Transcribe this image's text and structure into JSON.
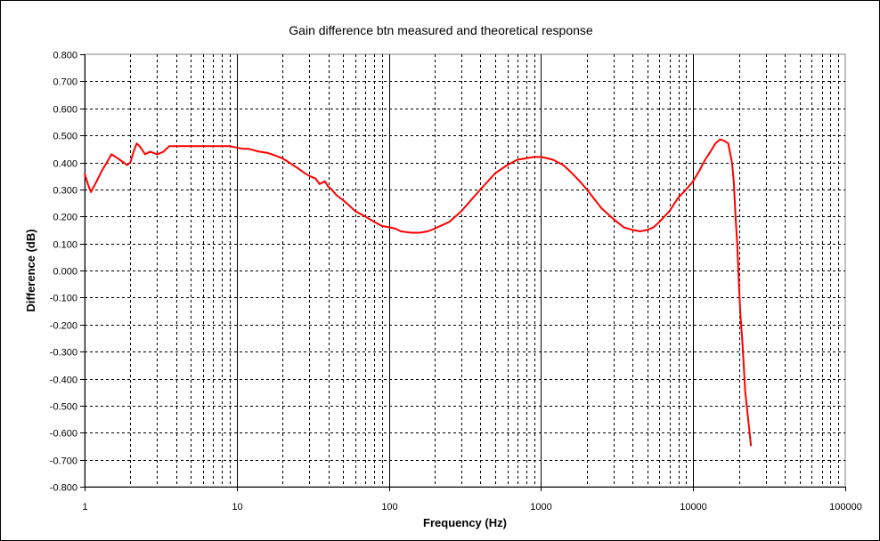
{
  "chart_data": {
    "type": "line",
    "title": "Gain difference btn measured and theoretical response",
    "xlabel": "Frequency (Hz)",
    "ylabel": "Difference (dB)",
    "x_scale": "log",
    "xlim": [
      1,
      100000
    ],
    "ylim": [
      -0.8,
      0.8
    ],
    "x_ticks": [
      1,
      10,
      100,
      1000,
      10000,
      100000
    ],
    "x_tick_labels": [
      "1",
      "10",
      "100",
      "1000",
      "10000",
      "100000"
    ],
    "y_ticks": [
      0.8,
      0.7,
      0.6,
      0.5,
      0.4,
      0.3,
      0.2,
      0.1,
      0.0,
      -0.1,
      -0.2,
      -0.3,
      -0.4,
      -0.5,
      -0.6,
      -0.7,
      -0.8
    ],
    "y_tick_labels": [
      "0.800",
      "0.700",
      "0.600",
      "0.500",
      "0.400",
      "0.300",
      "0.200",
      "0.100",
      "0.000",
      "-0.100",
      "-0.200",
      "-0.300",
      "-0.400",
      "-0.500",
      "-0.600",
      "-0.700",
      "-0.800"
    ],
    "grid": true,
    "series_color": "#ff0000",
    "series": [
      {
        "x": [
          1,
          1.05,
          1.1,
          1.2,
          1.3,
          1.4,
          1.5,
          1.6,
          1.7,
          1.8,
          1.9,
          2.0,
          2.1,
          2.2,
          2.3,
          2.5,
          2.7,
          3.0,
          3.3,
          3.6,
          4.0,
          4.5,
          5,
          6,
          7,
          8,
          9,
          10,
          11,
          12,
          14,
          16,
          18,
          20,
          22,
          25,
          28,
          30,
          33,
          35,
          38,
          40,
          42,
          45,
          50,
          55,
          60,
          70,
          80,
          90,
          100,
          110,
          120,
          140,
          160,
          180,
          200,
          250,
          300,
          400,
          500,
          600,
          700,
          800,
          900,
          1000,
          1100,
          1200,
          1400,
          1600,
          1800,
          2000,
          2500,
          3000,
          3500,
          4000,
          4500,
          5000,
          5500,
          6000,
          7000,
          8000,
          9000,
          10000,
          11000,
          12000,
          13000,
          14000,
          15000,
          16000,
          17000,
          18000,
          18500,
          19000,
          19500,
          20000,
          20500,
          21000,
          21500,
          22000,
          22500,
          23000,
          23500,
          24000
        ],
        "y": [
          0.36,
          0.32,
          0.29,
          0.33,
          0.37,
          0.4,
          0.43,
          0.42,
          0.41,
          0.4,
          0.39,
          0.4,
          0.44,
          0.47,
          0.46,
          0.43,
          0.44,
          0.43,
          0.44,
          0.46,
          0.46,
          0.46,
          0.46,
          0.46,
          0.46,
          0.46,
          0.46,
          0.455,
          0.45,
          0.45,
          0.44,
          0.435,
          0.425,
          0.415,
          0.4,
          0.38,
          0.36,
          0.35,
          0.34,
          0.32,
          0.33,
          0.31,
          0.3,
          0.28,
          0.26,
          0.24,
          0.22,
          0.2,
          0.18,
          0.165,
          0.16,
          0.155,
          0.145,
          0.14,
          0.14,
          0.145,
          0.155,
          0.18,
          0.22,
          0.3,
          0.36,
          0.39,
          0.41,
          0.415,
          0.42,
          0.42,
          0.415,
          0.41,
          0.39,
          0.36,
          0.33,
          0.3,
          0.23,
          0.19,
          0.16,
          0.15,
          0.145,
          0.15,
          0.16,
          0.18,
          0.22,
          0.27,
          0.3,
          0.33,
          0.37,
          0.41,
          0.44,
          0.47,
          0.485,
          0.48,
          0.47,
          0.4,
          0.33,
          0.2,
          0.1,
          -0.05,
          -0.17,
          -0.25,
          -0.35,
          -0.45,
          -0.5,
          -0.55,
          -0.6,
          -0.65
        ]
      }
    ]
  }
}
